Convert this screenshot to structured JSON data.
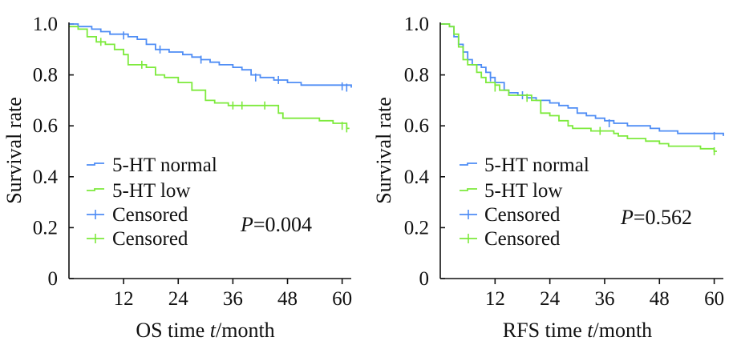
{
  "colors": {
    "normal": "#4f8df5",
    "low": "#7dea3c",
    "axis": "#111111"
  },
  "chart_data": [
    {
      "type": "line",
      "subtype": "kaplan-meier",
      "title": "",
      "xlabel": {
        "pre": "OS time ",
        "var": "t",
        "post": "/month"
      },
      "ylabel": "Survival rate",
      "xlim": [
        0,
        62
      ],
      "ylim": [
        0,
        1.0
      ],
      "xticks": [
        12,
        24,
        36,
        48,
        60
      ],
      "xtick_labels": [
        "12",
        "24",
        "36",
        "48",
        "60"
      ],
      "yticks": [
        0,
        0.2,
        0.4,
        0.6,
        0.8,
        1.0
      ],
      "ytick_labels": [
        "0",
        "0.2",
        "0.4",
        "0.6",
        "0.8",
        "1.0"
      ],
      "legend": [
        "5-HT normal",
        "5-HT low",
        "Censored",
        "Censored"
      ],
      "legend_position": "bottom-left",
      "pvalue": {
        "symbol": "P",
        "value": "=0.004"
      },
      "series": [
        {
          "name": "5-HT normal",
          "color": "#4f8df5",
          "steps": [
            [
              0,
              1.0
            ],
            [
              2,
              0.99
            ],
            [
              5,
              0.98
            ],
            [
              7,
              0.97
            ],
            [
              9,
              0.96
            ],
            [
              13,
              0.95
            ],
            [
              15,
              0.94
            ],
            [
              17,
              0.92
            ],
            [
              19,
              0.9
            ],
            [
              22,
              0.89
            ],
            [
              25,
              0.88
            ],
            [
              27,
              0.87
            ],
            [
              29,
              0.86
            ],
            [
              31,
              0.85
            ],
            [
              33,
              0.84
            ],
            [
              36,
              0.83
            ],
            [
              38,
              0.82
            ],
            [
              40,
              0.8
            ],
            [
              42,
              0.79
            ],
            [
              45,
              0.78
            ],
            [
              48,
              0.77
            ],
            [
              51,
              0.76
            ],
            [
              62,
              0.75
            ]
          ],
          "censored": [
            [
              12,
              0.955
            ],
            [
              20,
              0.9
            ],
            [
              29,
              0.86
            ],
            [
              41,
              0.79
            ],
            [
              46,
              0.78
            ],
            [
              60,
              0.755
            ],
            [
              61,
              0.75
            ]
          ]
        },
        {
          "name": "5-HT low",
          "color": "#7dea3c",
          "steps": [
            [
              0,
              0.99
            ],
            [
              2,
              0.98
            ],
            [
              4,
              0.95
            ],
            [
              6,
              0.93
            ],
            [
              8,
              0.92
            ],
            [
              10,
              0.9
            ],
            [
              12,
              0.88
            ],
            [
              13,
              0.84
            ],
            [
              17,
              0.83
            ],
            [
              19,
              0.8
            ],
            [
              21,
              0.79
            ],
            [
              24,
              0.77
            ],
            [
              27,
              0.74
            ],
            [
              30,
              0.7
            ],
            [
              32,
              0.69
            ],
            [
              35,
              0.68
            ],
            [
              46,
              0.65
            ],
            [
              47,
              0.63
            ],
            [
              55,
              0.62
            ],
            [
              58,
              0.61
            ],
            [
              61,
              0.59
            ]
          ],
          "censored": [
            [
              7,
              0.93
            ],
            [
              16,
              0.84
            ],
            [
              36,
              0.68
            ],
            [
              38,
              0.68
            ],
            [
              43,
              0.68
            ],
            [
              60,
              0.6
            ],
            [
              61,
              0.59
            ]
          ]
        }
      ]
    },
    {
      "type": "line",
      "subtype": "kaplan-meier",
      "title": "",
      "xlabel": {
        "pre": "RFS time ",
        "var": "t",
        "post": "/month"
      },
      "ylabel": "Survival rate",
      "xlim": [
        0,
        62
      ],
      "ylim": [
        0,
        1.0
      ],
      "xticks": [
        12,
        24,
        36,
        48,
        60
      ],
      "xtick_labels": [
        "12",
        "24",
        "36",
        "48",
        "60"
      ],
      "yticks": [
        0,
        0.2,
        0.4,
        0.6,
        0.8,
        1.0
      ],
      "ytick_labels": [
        "0",
        "0.2",
        "0.4",
        "0.6",
        "0.8",
        "1.0"
      ],
      "legend": [
        "5-HT normal",
        "5-HT low",
        "Censored",
        "Censored"
      ],
      "legend_position": "bottom-left",
      "pvalue": {
        "symbol": "P",
        "value": "=0.562"
      },
      "series": [
        {
          "name": "5-HT normal",
          "color": "#4f8df5",
          "steps": [
            [
              0,
              1.0
            ],
            [
              2,
              0.99
            ],
            [
              3,
              0.95
            ],
            [
              4,
              0.92
            ],
            [
              5,
              0.89
            ],
            [
              6,
              0.86
            ],
            [
              7,
              0.84
            ],
            [
              9,
              0.83
            ],
            [
              10,
              0.81
            ],
            [
              11,
              0.79
            ],
            [
              12,
              0.77
            ],
            [
              14,
              0.74
            ],
            [
              15,
              0.73
            ],
            [
              17,
              0.72
            ],
            [
              19,
              0.71
            ],
            [
              21,
              0.7
            ],
            [
              24,
              0.69
            ],
            [
              26,
              0.68
            ],
            [
              28,
              0.67
            ],
            [
              30,
              0.65
            ],
            [
              32,
              0.64
            ],
            [
              34,
              0.63
            ],
            [
              36,
              0.62
            ],
            [
              38,
              0.61
            ],
            [
              41,
              0.6
            ],
            [
              46,
              0.59
            ],
            [
              48,
              0.58
            ],
            [
              52,
              0.57
            ],
            [
              62,
              0.56
            ]
          ],
          "censored": [
            [
              11,
              0.79
            ],
            [
              18,
              0.72
            ],
            [
              37,
              0.61
            ],
            [
              60,
              0.56
            ]
          ]
        },
        {
          "name": "5-HT low",
          "color": "#7dea3c",
          "steps": [
            [
              0,
              1.0
            ],
            [
              2,
              0.99
            ],
            [
              3,
              0.96
            ],
            [
              4,
              0.91
            ],
            [
              5,
              0.86
            ],
            [
              6,
              0.84
            ],
            [
              8,
              0.81
            ],
            [
              9,
              0.79
            ],
            [
              10,
              0.77
            ],
            [
              12,
              0.76
            ],
            [
              13,
              0.74
            ],
            [
              15,
              0.72
            ],
            [
              20,
              0.7
            ],
            [
              22,
              0.65
            ],
            [
              24,
              0.64
            ],
            [
              26,
              0.62
            ],
            [
              28,
              0.6
            ],
            [
              29,
              0.59
            ],
            [
              33,
              0.58
            ],
            [
              38,
              0.57
            ],
            [
              39,
              0.56
            ],
            [
              41,
              0.55
            ],
            [
              45,
              0.54
            ],
            [
              48,
              0.53
            ],
            [
              50,
              0.52
            ],
            [
              57,
              0.51
            ],
            [
              60,
              0.5
            ]
          ],
          "censored": [
            [
              12,
              0.75
            ],
            [
              19,
              0.71
            ],
            [
              35,
              0.58
            ],
            [
              60,
              0.5
            ]
          ]
        }
      ]
    }
  ]
}
